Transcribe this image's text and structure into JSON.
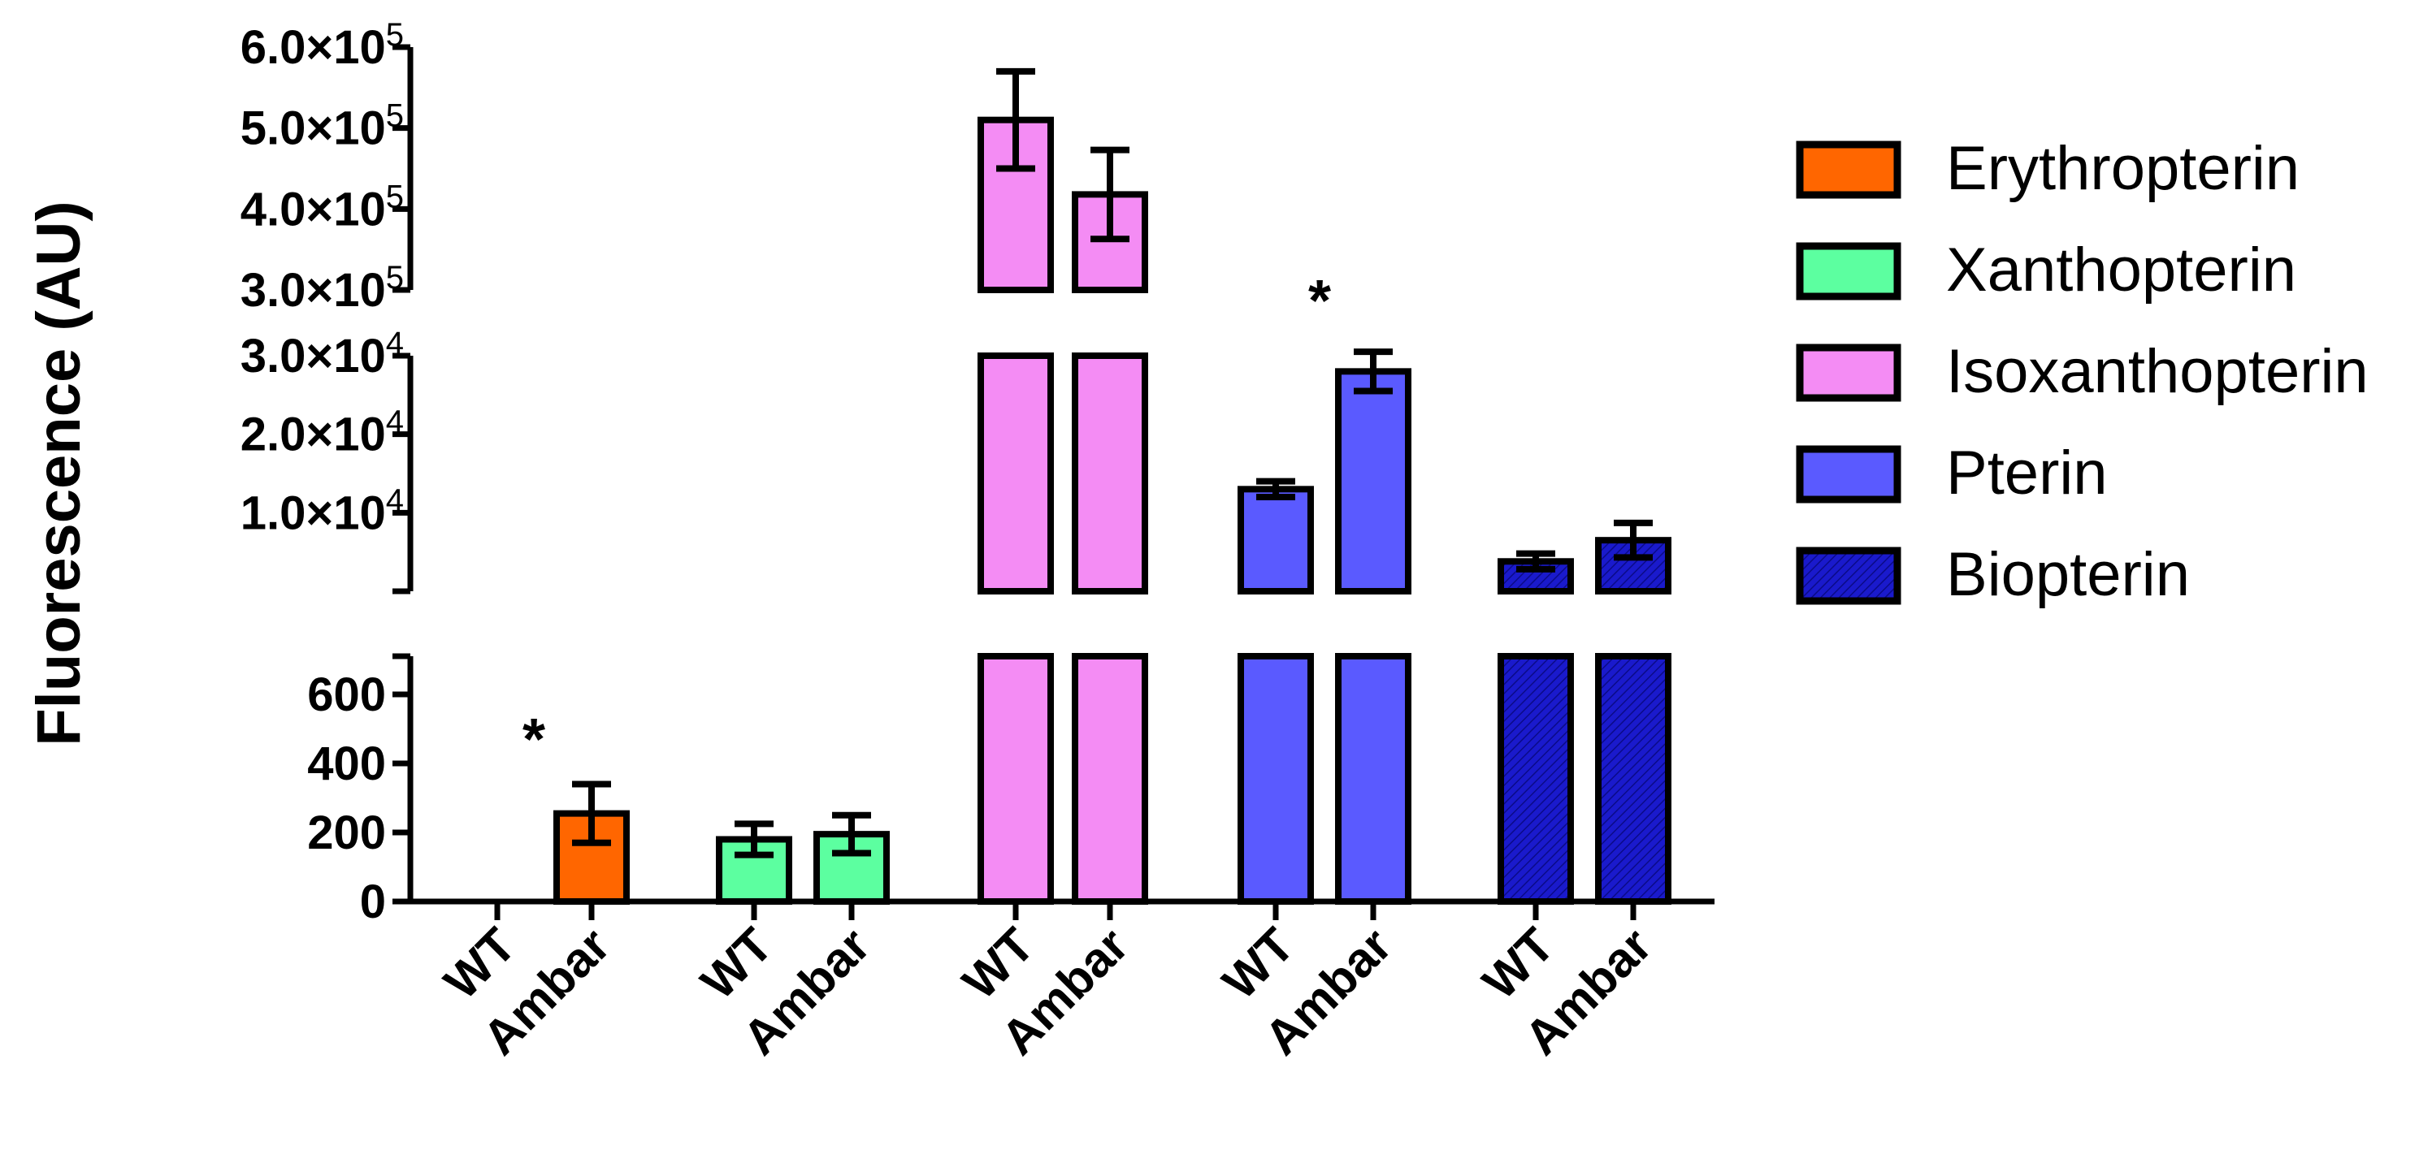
{
  "chart_data": {
    "type": "bar",
    "ylabel": "Fluorescence (AU)",
    "y_scale": "broken axis",
    "y_segments": [
      {
        "range": [
          0,
          700
        ],
        "ticks": [
          {
            "value": 0,
            "label": "0"
          },
          {
            "value": 200,
            "label": "200"
          },
          {
            "value": 400,
            "label": "400"
          },
          {
            "value": 600,
            "label": "600"
          }
        ]
      },
      {
        "range": [
          0,
          30000
        ],
        "ticks": [
          {
            "value": 10000,
            "label": "1.0×10",
            "exp": "4"
          },
          {
            "value": 20000,
            "label": "2.0×10",
            "exp": "4"
          },
          {
            "value": 30000,
            "label": "3.0×10",
            "exp": "4"
          }
        ]
      },
      {
        "range": [
          300000,
          600000
        ],
        "ticks": [
          {
            "value": 300000,
            "label": "3.0×10",
            "exp": "5"
          },
          {
            "value": 400000,
            "label": "4.0×10",
            "exp": "5"
          },
          {
            "value": 500000,
            "label": "5.0×10",
            "exp": "5"
          },
          {
            "value": 600000,
            "label": "6.0×10",
            "exp": "5"
          }
        ]
      }
    ],
    "legend_position": "right",
    "series": [
      {
        "name": "Erythropterin",
        "color": "#ff6600",
        "hatched": false,
        "bars": [
          {
            "label": "WT",
            "value": 0,
            "error": 0
          },
          {
            "label": "Ambar",
            "value": 255,
            "error": 85
          }
        ],
        "significance": "*"
      },
      {
        "name": "Xanthopterin",
        "color": "#5cffa0",
        "hatched": false,
        "bars": [
          {
            "label": "WT",
            "value": 180,
            "error": 45
          },
          {
            "label": "Ambar",
            "value": 195,
            "error": 55
          }
        ]
      },
      {
        "name": "Isoxanthopterin",
        "color": "#f48cf4",
        "hatched": false,
        "bars": [
          {
            "label": "WT",
            "value": 510000,
            "error": 60000
          },
          {
            "label": "Ambar",
            "value": 418000,
            "error": 55000
          }
        ]
      },
      {
        "name": "Pterin",
        "color": "#5a5aff",
        "hatched": false,
        "bars": [
          {
            "label": "WT",
            "value": 13000,
            "error": 1000
          },
          {
            "label": "Ambar",
            "value": 28000,
            "error": 2500
          }
        ],
        "significance": "*"
      },
      {
        "name": "Biopterin",
        "color": "#1a1acc",
        "hatched": true,
        "bars": [
          {
            "label": "WT",
            "value": 3800,
            "error": 1000
          },
          {
            "label": "Ambar",
            "value": 6500,
            "error": 2200
          }
        ]
      }
    ]
  },
  "palette": {
    "axis": "#000000",
    "bar_outline": "#000000",
    "background": "#ffffff"
  },
  "bar_label_words": {
    "wt": "WT",
    "ambar": "Ambar"
  },
  "significance_mark": "*"
}
